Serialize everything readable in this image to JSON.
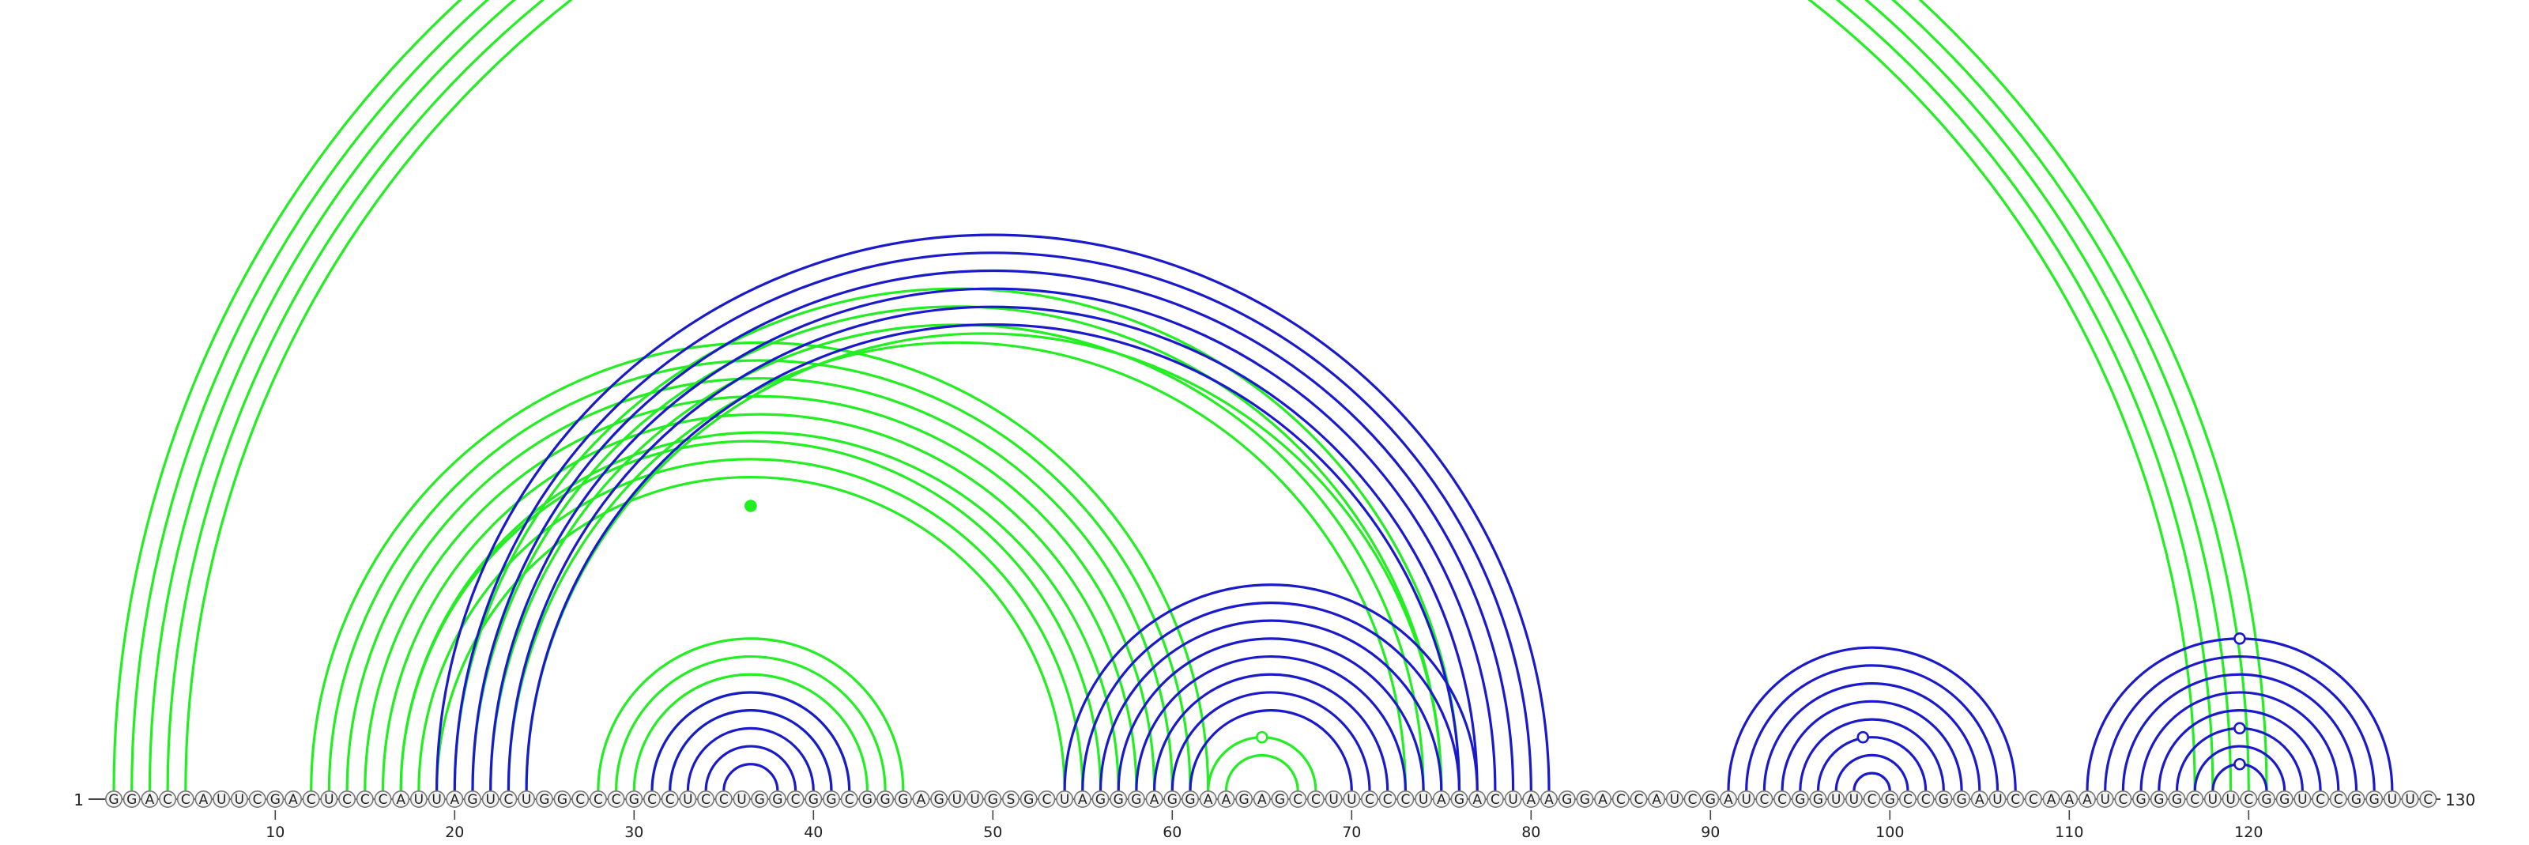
{
  "diagram": {
    "sequence": "GGACCAUUCGACUCCCAUUAGUCUGGCCCGCCUCCUGGCGGCGGGAGUUGSGCUAGGGAGGAAGAGCCUUCCCUAGACUAAGGACCAUCGAUCCGGUUCGCCGGAUCCAAAUCGGGCUUCGGUCCGGUUC",
    "start_label": "1",
    "end_label": "130",
    "ticks": [
      10,
      20,
      30,
      40,
      50,
      60,
      70,
      80,
      90,
      100,
      110,
      120
    ],
    "colors": {
      "green": "#22ee22",
      "blue": "#1a1acc",
      "nucleotide_stroke": "#777777",
      "nucleotide_fill": "#f2f2f2",
      "text": "#222222"
    },
    "green_helices": [
      {
        "i": 1,
        "j": 121,
        "n": 5
      },
      {
        "i": 12,
        "j": 62,
        "n": 6
      },
      {
        "i": 17,
        "j": 56,
        "n": 3
      },
      {
        "i": 20,
        "j": 76,
        "n": 4
      },
      {
        "i": 24,
        "j": 75,
        "n": 1
      },
      {
        "i": 28,
        "j": 45,
        "n": 5
      },
      {
        "i": 62,
        "j": 68,
        "n": 2
      }
    ],
    "blue_helices": [
      {
        "i": 19,
        "j": 81,
        "n": 6
      },
      {
        "i": 31,
        "j": 42,
        "n": 5
      },
      {
        "i": 54,
        "j": 77,
        "n": 8
      },
      {
        "i": 91,
        "j": 107,
        "n": 8
      },
      {
        "i": 111,
        "j": 128,
        "n": 8
      }
    ],
    "markers": [
      {
        "pos": 36.5,
        "height": 1,
        "color": "green",
        "filled": true
      },
      {
        "pos": 65.0,
        "height": 0.15,
        "color": "green",
        "filled": false
      },
      {
        "pos": 98.5,
        "height": 0.05,
        "color": "blue",
        "filled": false
      },
      {
        "pos": 119.5,
        "height": 0.28,
        "color": "blue",
        "filled": false
      },
      {
        "pos": 119.5,
        "height": 0.1,
        "color": "blue",
        "filled": false
      },
      {
        "pos": 119.5,
        "height": 0.02,
        "color": "blue",
        "filled": false
      }
    ]
  }
}
